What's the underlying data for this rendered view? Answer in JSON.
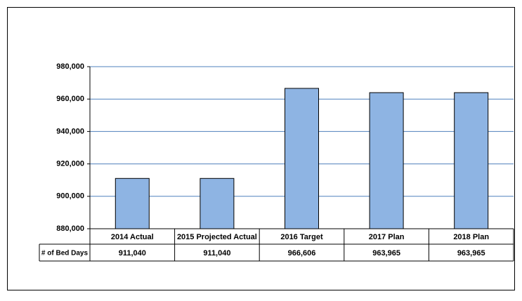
{
  "chart_data": {
    "type": "bar",
    "categories": [
      "2014 Actual",
      "2015 Projected Actual",
      "2016 Target",
      "2017 Plan",
      "2018 Plan"
    ],
    "series": [
      {
        "name": "# of Bed Days",
        "color": "#8eb4e3",
        "values": [
          911040,
          911040,
          966606,
          963965,
          963965
        ],
        "value_labels": [
          "911,040",
          "911,040",
          "966,606",
          "963,965",
          "963,965"
        ]
      }
    ],
    "ylim": [
      880000,
      980000
    ],
    "yticks": [
      {
        "value": 880000,
        "label": "880,000"
      },
      {
        "value": 900000,
        "label": "900,000"
      },
      {
        "value": 920000,
        "label": "920,000"
      },
      {
        "value": 940000,
        "label": "940,000"
      },
      {
        "value": 960000,
        "label": "960,000"
      },
      {
        "value": 980000,
        "label": "980,000"
      }
    ],
    "grid": true
  }
}
